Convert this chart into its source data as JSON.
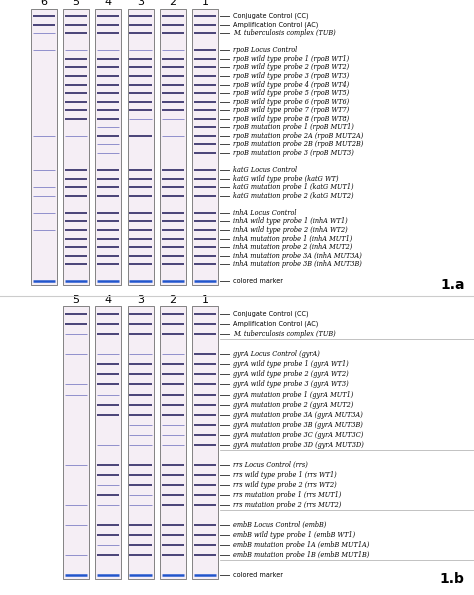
{
  "fig_width": 4.74,
  "fig_height": 5.95,
  "panel_a": {
    "label": "1.a",
    "strip_labels": [
      "6",
      "5",
      "4",
      "3",
      "2",
      "1"
    ],
    "annotations": [
      {
        "text": "Conjugate Control (CC)",
        "italic": false,
        "gap_after": false
      },
      {
        "text": "Amplification Control (AC)",
        "italic": false,
        "gap_after": false
      },
      {
        "text": "M. tuberculosis complex (TUB)",
        "italic_partial": "M. tuberculosis",
        "gap_after": false
      },
      {
        "text": "",
        "italic": false,
        "gap_after": false
      },
      {
        "text": "rpoB Locus Control",
        "italic": true,
        "gap_after": false
      },
      {
        "text": "rpoB wild type probe 1 (rpoB WT1)",
        "italic": true,
        "gap_after": false
      },
      {
        "text": "rpoB wild type probe 2 (rpoB WT2)",
        "italic": true,
        "gap_after": false
      },
      {
        "text": "rpoB wild type probe 3 (rpoB WT3)",
        "italic": true,
        "gap_after": false
      },
      {
        "text": "rpoB wild type probe 4 (rpoB WT4)",
        "italic": true,
        "gap_after": false
      },
      {
        "text": "rpoB wild type probe 5 (rpoB WT5)",
        "italic": true,
        "gap_after": false
      },
      {
        "text": "rpoB wild type probe 6 (rpoB WT6)",
        "italic": true,
        "gap_after": false
      },
      {
        "text": "rpoB wild type probe 7 (rpoB WT7)",
        "italic": true,
        "gap_after": false
      },
      {
        "text": "rpoB wild type probe 8 (rpoB WT8)",
        "italic": true,
        "gap_after": false
      },
      {
        "text": "rpoB mutation probe 1 (rpoB MUT1)",
        "italic": true,
        "gap_after": false
      },
      {
        "text": "rpoB mutation probe 2A (rpoB MUT2A)",
        "italic": true,
        "gap_after": false
      },
      {
        "text": "rpoB mutation probe 2B (rpoB MUT2B)",
        "italic": true,
        "gap_after": false
      },
      {
        "text": "rpoB mutation probe 3 (rpoB MUT3)",
        "italic": true,
        "gap_after": false
      },
      {
        "text": "",
        "italic": false,
        "gap_after": false
      },
      {
        "text": "katG Locus Control",
        "italic": true,
        "gap_after": false
      },
      {
        "text": "katG wild type probe (katG WT)",
        "italic": true,
        "gap_after": false
      },
      {
        "text": "katG mutation probe 1 (katG MUT1)",
        "italic": true,
        "gap_after": false
      },
      {
        "text": "katG mutation probe 2 (katG MUT2)",
        "italic": true,
        "gap_after": false
      },
      {
        "text": "",
        "italic": false,
        "gap_after": false
      },
      {
        "text": "inhA Locus Control",
        "italic": true,
        "gap_after": false
      },
      {
        "text": "inhA wild type probe 1 (inhA WT1)",
        "italic": true,
        "gap_after": false
      },
      {
        "text": "inhA wild type probe 2 (inhA WT2)",
        "italic": true,
        "gap_after": false
      },
      {
        "text": "inhA mutation probe 1 (inhA MUT1)",
        "italic": true,
        "gap_after": false
      },
      {
        "text": "inhA mutation probe 2 (inhA MUT2)",
        "italic": true,
        "gap_after": false
      },
      {
        "text": "inhA mutation probe 3A (inhA MUT3A)",
        "italic": true,
        "gap_after": false
      },
      {
        "text": "inhA mutation probe 3B (inhA MUT3B)",
        "italic": true,
        "gap_after": false
      },
      {
        "text": "",
        "italic": false,
        "gap_after": false
      },
      {
        "text": "colored marker",
        "italic": false,
        "gap_after": false
      }
    ],
    "bands": {
      "1": {
        "dark": [
          0,
          1,
          2,
          4,
          5,
          6,
          7,
          8,
          9,
          10,
          11,
          12,
          13,
          14,
          15,
          16,
          18,
          19,
          20,
          21,
          23,
          24,
          25,
          26,
          27,
          28,
          29
        ],
        "light": [],
        "blue": [
          31
        ]
      },
      "2": {
        "dark": [
          0,
          1,
          2,
          5,
          6,
          7,
          8,
          9,
          10,
          11,
          18,
          19,
          20,
          21,
          23,
          24,
          25,
          26,
          27,
          28,
          29
        ],
        "light": [
          4,
          12,
          14
        ],
        "blue": [
          31
        ]
      },
      "3": {
        "dark": [
          0,
          1,
          2,
          5,
          6,
          7,
          8,
          9,
          10,
          11,
          14,
          18,
          19,
          20,
          21,
          23,
          24,
          25,
          26,
          27,
          28,
          29
        ],
        "light": [
          4,
          12
        ],
        "blue": [
          31
        ]
      },
      "4": {
        "dark": [
          0,
          1,
          2,
          5,
          6,
          7,
          8,
          9,
          10,
          11,
          12,
          14,
          18,
          19,
          20,
          21,
          23,
          24,
          25,
          26,
          27,
          28,
          29
        ],
        "light": [
          4,
          13,
          15,
          16
        ],
        "blue": [
          31
        ]
      },
      "5": {
        "dark": [
          0,
          1,
          2,
          5,
          6,
          7,
          8,
          9,
          10,
          11,
          12,
          18,
          19,
          20,
          21,
          23,
          24,
          25,
          26,
          27,
          28,
          29
        ],
        "light": [
          4,
          14
        ],
        "blue": [
          31
        ]
      },
      "6": {
        "dark": [
          0,
          1
        ],
        "light": [
          2,
          4,
          14,
          18,
          20,
          21,
          23,
          25
        ],
        "blue": [
          31
        ]
      }
    }
  },
  "panel_b": {
    "label": "1.b",
    "strip_labels": [
      "5",
      "4",
      "3",
      "2",
      "1"
    ],
    "separator_lines": [
      3,
      14,
      20,
      25
    ],
    "annotations": [
      {
        "text": "Conjugate Control (CC)",
        "italic": false
      },
      {
        "text": "Amplification Control (AC)",
        "italic": false
      },
      {
        "text": "M. tuberculosis complex (TUB)",
        "italic_partial": "M. tuberculosis"
      },
      {
        "text": "",
        "italic": false
      },
      {
        "text": "gyrA Locus Control (gyrA)",
        "italic": true
      },
      {
        "text": "gyrA wild type probe 1 (gyrA WT1)",
        "italic": true
      },
      {
        "text": "gyrA wild type probe 2 (gyrA WT2)",
        "italic": true
      },
      {
        "text": "gyrA wild type probe 3 (gyrA WT3)",
        "italic": true
      },
      {
        "text": "gyrA mutation probe 1 (gyrA MUT1)",
        "italic": true
      },
      {
        "text": "gyrA mutation probe 2 (gyrA MUT2)",
        "italic": true
      },
      {
        "text": "gyrA mutation probe 3A (gyrA MUT3A)",
        "italic": true
      },
      {
        "text": "gyrA mutation probe 3B (gyrA MUT3B)",
        "italic": true
      },
      {
        "text": "gyrA mutation probe 3C (gyrA MUT3C)",
        "italic": true
      },
      {
        "text": "gyrA mutation probe 3D (gyrA MUT3D)",
        "italic": true
      },
      {
        "text": "",
        "italic": false
      },
      {
        "text": "rrs Locus Control (rrs)",
        "italic": true
      },
      {
        "text": "rrs wild type probe 1 (rrs WT1)",
        "italic": true
      },
      {
        "text": "rrs wild type probe 2 (rrs WT2)",
        "italic": true
      },
      {
        "text": "rrs mutation probe 1 (rrs MUT1)",
        "italic": true
      },
      {
        "text": "rrs mutation probe 2 (rrs MUT2)",
        "italic": true
      },
      {
        "text": "",
        "italic": false
      },
      {
        "text": "embB Locus Control (embB)",
        "italic": true
      },
      {
        "text": "embB wild type probe 1 (embB WT1)",
        "italic": true
      },
      {
        "text": "embB mutation probe 1A (embB MUT1A)",
        "italic": true
      },
      {
        "text": "embB mutation probe 1B (embB MUT1B)",
        "italic": true
      },
      {
        "text": "",
        "italic": false
      },
      {
        "text": "colored marker",
        "italic": false
      }
    ],
    "bands": {
      "1": {
        "dark": [
          0,
          1,
          2,
          4,
          5,
          6,
          7,
          8,
          9,
          10,
          11,
          12,
          13,
          15,
          16,
          17,
          18,
          19,
          21,
          22,
          23,
          24
        ],
        "light": [],
        "blue": [
          26
        ]
      },
      "2": {
        "dark": [
          0,
          1,
          2,
          5,
          6,
          7,
          8,
          9,
          10,
          15,
          16,
          17,
          18,
          19,
          21,
          22,
          23,
          24
        ],
        "light": [
          4,
          11,
          12,
          13
        ],
        "blue": [
          26
        ]
      },
      "3": {
        "dark": [
          0,
          1,
          2,
          5,
          6,
          7,
          8,
          9,
          10,
          15,
          16,
          17,
          21,
          22,
          23,
          24
        ],
        "light": [
          4,
          11,
          12,
          13,
          18,
          19
        ],
        "blue": [
          26
        ]
      },
      "4": {
        "dark": [
          0,
          1,
          2,
          5,
          6,
          7,
          9,
          10,
          15,
          16,
          18,
          21,
          22,
          24
        ],
        "light": [
          4,
          8,
          13,
          17,
          19,
          23
        ],
        "blue": [
          26
        ]
      },
      "5": {
        "dark": [
          0,
          1
        ],
        "light": [
          2,
          4,
          7,
          8,
          15,
          19,
          21,
          24
        ],
        "blue": [
          26
        ]
      }
    }
  }
}
